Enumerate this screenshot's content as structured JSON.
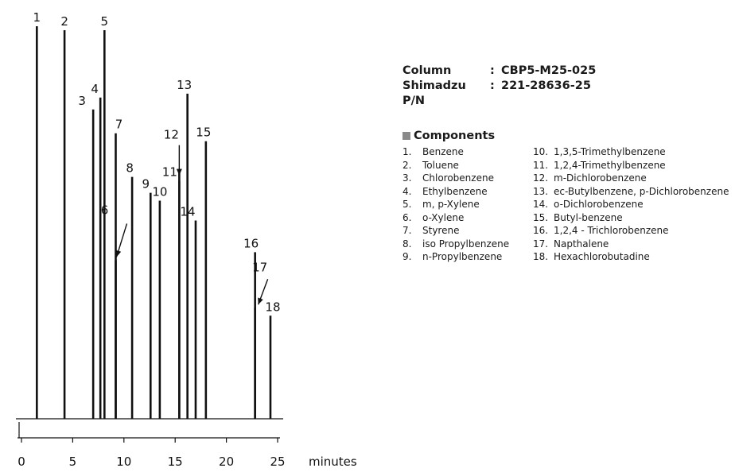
{
  "chart_data": {
    "type": "line",
    "subtype": "chromatogram",
    "xlabel": "minutes",
    "xlim": [
      0,
      25
    ],
    "x_ticks": [
      0,
      5,
      10,
      15,
      20,
      25
    ],
    "ylim": [
      0,
      1
    ],
    "peaks": [
      {
        "label": "1",
        "rt": 1.5,
        "height": 0.99
      },
      {
        "label": "2",
        "rt": 4.2,
        "height": 0.98
      },
      {
        "label": "3",
        "rt": 7.0,
        "height": 0.78
      },
      {
        "label": "4",
        "rt": 7.7,
        "height": 0.81
      },
      {
        "label": "5",
        "rt": 8.1,
        "height": 0.98
      },
      {
        "label": "6",
        "rt": 9.2,
        "height": 0.4
      },
      {
        "label": "7",
        "rt": 9.2,
        "height": 0.72
      },
      {
        "label": "8",
        "rt": 10.8,
        "height": 0.61
      },
      {
        "label": "9",
        "rt": 12.6,
        "height": 0.57
      },
      {
        "label": "10",
        "rt": 13.5,
        "height": 0.55
      },
      {
        "label": "11",
        "rt": 15.4,
        "height": 0.6
      },
      {
        "label": "12",
        "rt": 15.4,
        "height": 0.63
      },
      {
        "label": "13",
        "rt": 16.2,
        "height": 0.82
      },
      {
        "label": "14",
        "rt": 17.0,
        "height": 0.5
      },
      {
        "label": "15",
        "rt": 18.0,
        "height": 0.7
      },
      {
        "label": "16",
        "rt": 22.8,
        "height": 0.42
      },
      {
        "label": "17",
        "rt": 22.8,
        "height": 0.28
      },
      {
        "label": "18",
        "rt": 24.3,
        "height": 0.26
      }
    ]
  },
  "info": {
    "column_label": "Column",
    "column_value": "CBP5-M25-025",
    "pn_label": "Shimadzu P/N",
    "pn_value": "221-28636-25",
    "separator": ":"
  },
  "components": {
    "title": "Components",
    "items": [
      {
        "num": "1.",
        "name": "Benzene"
      },
      {
        "num": "2.",
        "name": "Toluene"
      },
      {
        "num": "3.",
        "name": "Chlorobenzene"
      },
      {
        "num": "4.",
        "name": "Ethylbenzene"
      },
      {
        "num": "5.",
        "name": "m, p-Xylene"
      },
      {
        "num": "6.",
        "name": "o-Xylene"
      },
      {
        "num": "7.",
        "name": "Styrene"
      },
      {
        "num": "8.",
        "name": "iso Propylbenzene"
      },
      {
        "num": "9.",
        "name": "n-Propylbenzene"
      },
      {
        "num": "10.",
        "name": "1,3,5-Trimethylbenzene"
      },
      {
        "num": "11.",
        "name": "1,2,4-Trimethylbenzene"
      },
      {
        "num": "12.",
        "name": "m-Dichlorobenzene"
      },
      {
        "num": "13.",
        "name": "ec-Butylbenzene, p-Dichlorobenzene"
      },
      {
        "num": "14.",
        "name": "o-Dichlorobenzene"
      },
      {
        "num": "15.",
        "name": "Butyl-benzene"
      },
      {
        "num": "16.",
        "name": "1,2,4 - Trichlorobenzene"
      },
      {
        "num": "17.",
        "name": "Napthalene"
      },
      {
        "num": "18.",
        "name": "Hexachlorobutadine"
      }
    ]
  },
  "colors": {
    "ink": "#111111",
    "square": "#8a8a8a"
  }
}
